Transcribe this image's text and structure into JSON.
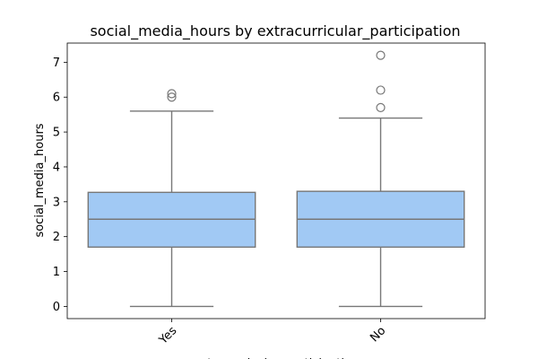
{
  "chart_data": {
    "type": "box",
    "title": "social_media_hours by extracurricular_participation",
    "xlabel": "extracurricular_participation",
    "ylabel": "social_media_hours",
    "categories": [
      "Yes",
      "No"
    ],
    "ylim": [
      -0.35,
      7.55
    ],
    "yticks": [
      0,
      1,
      2,
      3,
      4,
      5,
      6,
      7
    ],
    "tick_label_rotation": 45,
    "grid": false,
    "box_color": "#a1c9f4",
    "line_color": "#777777",
    "boxes": [
      {
        "category": "Yes",
        "whisker_low": 0.0,
        "q1": 1.7,
        "median": 2.5,
        "q3": 3.27,
        "whisker_high": 5.6,
        "outliers": [
          6.0,
          6.1
        ]
      },
      {
        "category": "No",
        "whisker_low": 0.0,
        "q1": 1.7,
        "median": 2.5,
        "q3": 3.3,
        "whisker_high": 5.4,
        "outliers": [
          5.7,
          6.2,
          7.2
        ]
      }
    ]
  }
}
